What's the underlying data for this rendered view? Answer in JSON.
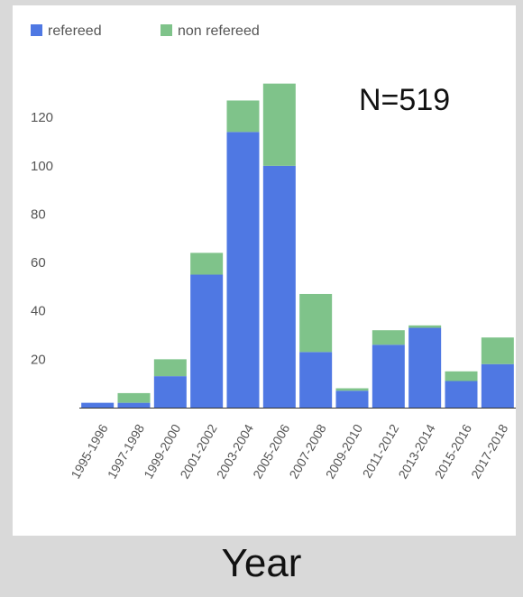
{
  "chart_data": {
    "type": "bar",
    "stacked": true,
    "categories": [
      "1995-1996",
      "1997-1998",
      "1999-2000",
      "2001-2002",
      "2003-2004",
      "2005-2006",
      "2007-2008",
      "2009-2010",
      "2011-2012",
      "2013-2014",
      "2015-2016",
      "2017-2018"
    ],
    "series": [
      {
        "name": "refereed",
        "color": "#4f78e3",
        "values": [
          2,
          2,
          13,
          55,
          114,
          100,
          23,
          7,
          26,
          33,
          11,
          18
        ]
      },
      {
        "name": "non refereed",
        "color": "#7fc38a",
        "values": [
          0,
          4,
          7,
          9,
          13,
          34,
          24,
          1,
          6,
          1,
          4,
          11
        ]
      }
    ],
    "yticks": [
      "20",
      "40",
      "60",
      "80",
      "100",
      "120"
    ],
    "ylim": [
      0,
      135
    ],
    "xlabel": "Year",
    "ylabel": "",
    "annotation": "N=519",
    "legend_position": "top-left",
    "grid": false
  }
}
